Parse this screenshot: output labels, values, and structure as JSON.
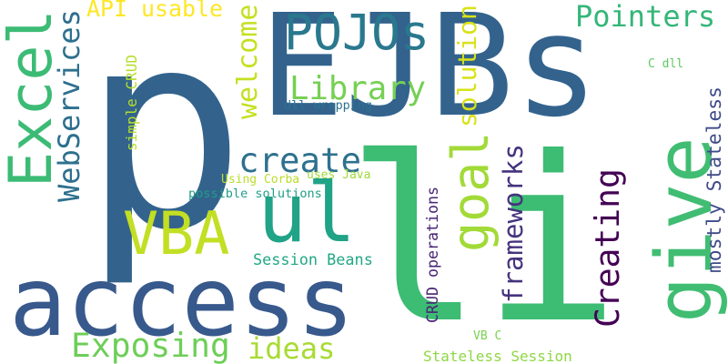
{
  "words": [
    {
      "text": "p",
      "color": "#33638d"
    },
    {
      "text": "EJBs",
      "color": "#33638d"
    },
    {
      "text": "li",
      "color": "#3dbc74"
    },
    {
      "text": "access",
      "color": "#38598c"
    },
    {
      "text": "Excel",
      "color": "#3cbb75"
    },
    {
      "text": "POJOs",
      "color": "#2a788e"
    },
    {
      "text": "give",
      "color": "#40bd72"
    },
    {
      "text": "ul",
      "color": "#20a386"
    },
    {
      "text": "VBA",
      "color": "#c2df23"
    },
    {
      "text": "goal",
      "color": "#a2da37"
    },
    {
      "text": "Library",
      "color": "#75d054"
    },
    {
      "text": "create",
      "color": "#2d718e"
    },
    {
      "text": "Pointers",
      "color": "#34b679"
    },
    {
      "text": "WebServices",
      "color": "#2d708e"
    },
    {
      "text": "welcome",
      "color": "#c5e021"
    },
    {
      "text": "solution",
      "color": "#d8e219"
    },
    {
      "text": "frameworks",
      "color": "#46337e"
    },
    {
      "text": "Creating",
      "color": "#440154"
    },
    {
      "text": "Exposing",
      "color": "#6ece58"
    },
    {
      "text": "ideas",
      "color": "#a8db34"
    },
    {
      "text": "mostly Stateless",
      "color": "#3e4a89"
    },
    {
      "text": "API usable",
      "color": "#fde725"
    },
    {
      "text": "Session Beans",
      "color": "#22a884"
    },
    {
      "text": "Stateless Session",
      "color": "#8fd744"
    },
    {
      "text": "CRUD operations",
      "color": "#482475"
    },
    {
      "text": "possible solutions",
      "color": "#1f9e89"
    },
    {
      "text": "dll wrapping",
      "color": "#2c728e"
    },
    {
      "text": "simple CRUD",
      "color": "#b5de2b"
    },
    {
      "text": "Using Corba",
      "color": "#b8de29"
    },
    {
      "text": "uses Java",
      "color": "#9fda3a"
    },
    {
      "text": "C dll",
      "color": "#5ec962"
    },
    {
      "text": "VB C",
      "color": "#7ad151"
    }
  ]
}
